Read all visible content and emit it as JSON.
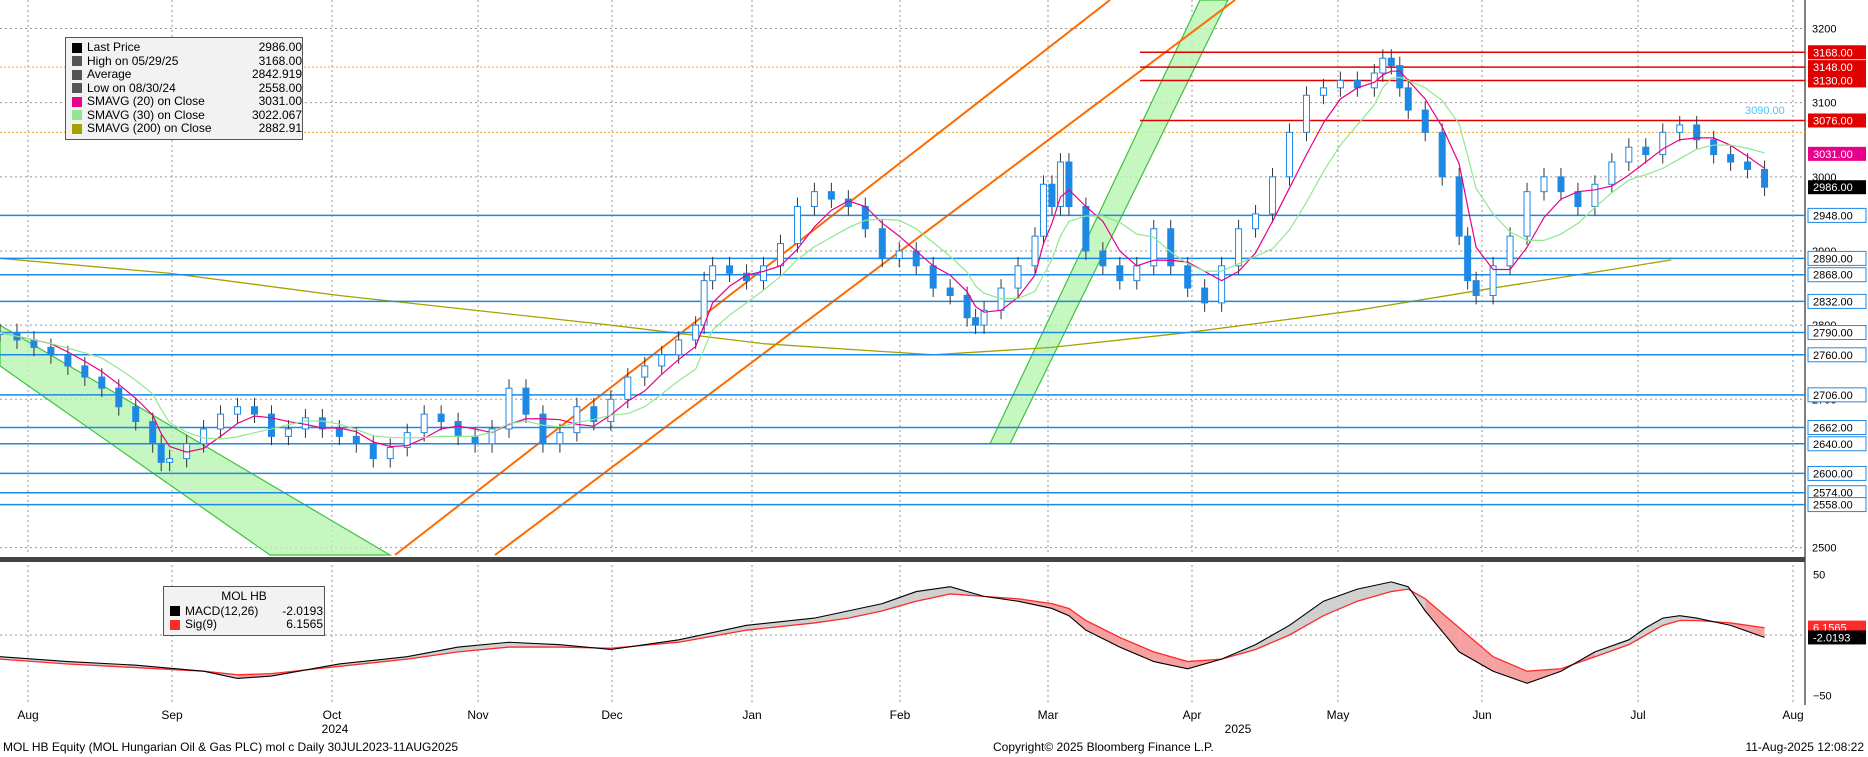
{
  "chart_data": [
    {
      "type": "candlestick",
      "ticker": "MOL HB Equity (MOL Hungarian Oil & Gas PLC) mol c",
      "period": "Daily 30JUL2023-11AUG2025",
      "ylim": [
        2490,
        3225
      ],
      "y_ticks": [
        2500,
        2600,
        2700,
        2800,
        2900,
        3000,
        3100,
        3200
      ],
      "x_months": [
        "Aug",
        "Sep",
        "Oct",
        "Nov",
        "Dec",
        "Jan",
        "Feb",
        "Mar",
        "Apr",
        "May",
        "Jun",
        "Jul",
        "Aug"
      ],
      "x_years": [
        "2024",
        "2025"
      ],
      "legend": [
        {
          "label": "Last Price",
          "value": "2986.00",
          "color": "#000000"
        },
        {
          "label": "High on 05/29/25",
          "value": "3168.00",
          "color": "#555555"
        },
        {
          "label": "Average",
          "value": "2842.919",
          "color": "#555555"
        },
        {
          "label": "Low on 08/30/24",
          "value": "2558.00",
          "color": "#555555"
        },
        {
          "label": "SMAVG (20)  on Close",
          "value": "3031.00",
          "color": "#e6008a"
        },
        {
          "label": "SMAVG (30)  on Close",
          "value": "3022.067",
          "color": "#8fe88f"
        },
        {
          "label": "SMAVG (200)  on Close",
          "value": "2882.91",
          "color": "#a3a300"
        }
      ],
      "horizontal_levels": [
        {
          "value": 3168,
          "label": "3168.00",
          "color": "#e00000"
        },
        {
          "value": 3148,
          "label": "3148.00",
          "color": "#e00000"
        },
        {
          "value": 3130,
          "label": "3130.00",
          "color": "#e00000"
        },
        {
          "value": 3076,
          "label": "3076.00",
          "color": "#e00000"
        },
        {
          "value": 2948,
          "label": "2948.00",
          "color": "#1e88e5"
        },
        {
          "value": 2890,
          "label": "2890.00",
          "color": "#1e88e5"
        },
        {
          "value": 2868,
          "label": "2868.00",
          "color": "#1e88e5"
        },
        {
          "value": 2832,
          "label": "2832.00",
          "color": "#1e88e5"
        },
        {
          "value": 2790,
          "label": "2790.00",
          "color": "#1e88e5"
        },
        {
          "value": 2760,
          "label": "2760.00",
          "color": "#1e88e5"
        },
        {
          "value": 2706,
          "label": "2706.00",
          "color": "#1e88e5"
        },
        {
          "value": 2662,
          "label": "2662.00",
          "color": "#1e88e5"
        },
        {
          "value": 2640,
          "label": "2640.00",
          "color": "#1e88e5"
        },
        {
          "value": 2600,
          "label": "2600.00",
          "color": "#1e88e5"
        },
        {
          "value": 2574,
          "label": "2574.00",
          "color": "#1e88e5"
        },
        {
          "value": 2558,
          "label": "2558.00",
          "color": "#1e88e5"
        }
      ],
      "right_labels": [
        {
          "value": 3031,
          "label": "3031.00",
          "bg": "#e6008a",
          "fg": "#ffffff"
        },
        {
          "value": 2986,
          "label": "2986.00",
          "bg": "#000000",
          "fg": "#ffffff"
        }
      ],
      "floating_label": {
        "value": 3090,
        "label": "3090.00",
        "color": "#4fc3f7"
      },
      "ma200_points": [
        [
          0.0,
          2890
        ],
        [
          0.1,
          2870
        ],
        [
          0.2,
          2840
        ],
        [
          0.3,
          2815
        ],
        [
          0.36,
          2800
        ],
        [
          0.45,
          2775
        ],
        [
          0.55,
          2760
        ],
        [
          0.62,
          2770
        ],
        [
          0.7,
          2790
        ],
        [
          0.8,
          2820
        ],
        [
          0.88,
          2850
        ],
        [
          0.95,
          2875
        ],
        [
          0.985,
          2888
        ]
      ],
      "candles": [
        [
          0.0,
          2790
        ],
        [
          0.01,
          2780
        ],
        [
          0.02,
          2770
        ],
        [
          0.03,
          2760
        ],
        [
          0.04,
          2745
        ],
        [
          0.05,
          2730
        ],
        [
          0.06,
          2715
        ],
        [
          0.07,
          2690
        ],
        [
          0.08,
          2670
        ],
        [
          0.09,
          2640
        ],
        [
          0.095,
          2615
        ],
        [
          0.1,
          2620
        ],
        [
          0.11,
          2640
        ],
        [
          0.12,
          2660
        ],
        [
          0.13,
          2680
        ],
        [
          0.14,
          2690
        ],
        [
          0.15,
          2680
        ],
        [
          0.16,
          2650
        ],
        [
          0.17,
          2660
        ],
        [
          0.18,
          2675
        ],
        [
          0.19,
          2660
        ],
        [
          0.2,
          2650
        ],
        [
          0.21,
          2640
        ],
        [
          0.22,
          2620
        ],
        [
          0.23,
          2635
        ],
        [
          0.24,
          2655
        ],
        [
          0.25,
          2680
        ],
        [
          0.26,
          2670
        ],
        [
          0.27,
          2650
        ],
        [
          0.28,
          2640
        ],
        [
          0.29,
          2660
        ],
        [
          0.3,
          2715
        ],
        [
          0.31,
          2680
        ],
        [
          0.32,
          2640
        ],
        [
          0.33,
          2655
        ],
        [
          0.34,
          2690
        ],
        [
          0.35,
          2670
        ],
        [
          0.36,
          2700
        ],
        [
          0.37,
          2730
        ],
        [
          0.38,
          2745
        ],
        [
          0.39,
          2760
        ],
        [
          0.4,
          2780
        ],
        [
          0.41,
          2800
        ],
        [
          0.415,
          2860
        ],
        [
          0.42,
          2880
        ],
        [
          0.43,
          2870
        ],
        [
          0.44,
          2860
        ],
        [
          0.45,
          2880
        ],
        [
          0.46,
          2910
        ],
        [
          0.47,
          2960
        ],
        [
          0.48,
          2980
        ],
        [
          0.49,
          2970
        ],
        [
          0.5,
          2960
        ],
        [
          0.51,
          2930
        ],
        [
          0.52,
          2890
        ],
        [
          0.53,
          2900
        ],
        [
          0.54,
          2880
        ],
        [
          0.55,
          2850
        ],
        [
          0.56,
          2840
        ],
        [
          0.57,
          2810
        ],
        [
          0.575,
          2800
        ],
        [
          0.58,
          2820
        ],
        [
          0.59,
          2850
        ],
        [
          0.6,
          2880
        ],
        [
          0.61,
          2920
        ],
        [
          0.615,
          2990
        ],
        [
          0.62,
          2960
        ],
        [
          0.625,
          3020
        ],
        [
          0.63,
          2960
        ],
        [
          0.64,
          2900
        ],
        [
          0.65,
          2880
        ],
        [
          0.66,
          2860
        ],
        [
          0.67,
          2880
        ],
        [
          0.68,
          2930
        ],
        [
          0.69,
          2880
        ],
        [
          0.7,
          2850
        ],
        [
          0.71,
          2830
        ],
        [
          0.72,
          2880
        ],
        [
          0.73,
          2930
        ],
        [
          0.74,
          2950
        ],
        [
          0.75,
          3000
        ],
        [
          0.76,
          3060
        ],
        [
          0.77,
          3110
        ],
        [
          0.78,
          3120
        ],
        [
          0.79,
          3130
        ],
        [
          0.8,
          3120
        ],
        [
          0.81,
          3140
        ],
        [
          0.815,
          3160
        ],
        [
          0.82,
          3150
        ],
        [
          0.825,
          3120
        ],
        [
          0.83,
          3090
        ],
        [
          0.84,
          3060
        ],
        [
          0.85,
          3000
        ],
        [
          0.86,
          2920
        ],
        [
          0.865,
          2860
        ],
        [
          0.87,
          2840
        ],
        [
          0.88,
          2880
        ],
        [
          0.89,
          2920
        ],
        [
          0.9,
          2980
        ],
        [
          0.91,
          3000
        ],
        [
          0.92,
          2980
        ],
        [
          0.93,
          2960
        ],
        [
          0.94,
          2990
        ],
        [
          0.95,
          3020
        ],
        [
          0.96,
          3040
        ],
        [
          0.97,
          3030
        ],
        [
          0.98,
          3060
        ],
        [
          0.99,
          3070
        ],
        [
          1.0,
          3050
        ],
        [
          1.01,
          3030
        ],
        [
          1.02,
          3020
        ],
        [
          1.03,
          3010
        ],
        [
          1.04,
          2986
        ]
      ]
    },
    {
      "type": "macd",
      "title": "MOL HB",
      "ylim": [
        -58,
        58
      ],
      "y_ticks": [
        50,
        -50
      ],
      "legend": [
        {
          "label": "MACD(12,26)",
          "value": "-2.0193",
          "color": "#000000"
        },
        {
          "label": "Sig(9)",
          "value": "6.1565",
          "color": "#ff2a2a"
        }
      ],
      "right_labels": [
        {
          "value": 6.1565,
          "label": "6.1565",
          "bg": "#ff2a2a",
          "fg": "#ffffff"
        },
        {
          "value": -2.0193,
          "label": "-2.0193",
          "bg": "#000000",
          "fg": "#ffffff"
        }
      ],
      "macd_points": [
        [
          0.0,
          -18
        ],
        [
          0.04,
          -22
        ],
        [
          0.08,
          -25
        ],
        [
          0.12,
          -30
        ],
        [
          0.14,
          -36
        ],
        [
          0.16,
          -34
        ],
        [
          0.2,
          -24
        ],
        [
          0.24,
          -18
        ],
        [
          0.27,
          -10
        ],
        [
          0.3,
          -6
        ],
        [
          0.33,
          -8
        ],
        [
          0.36,
          -12
        ],
        [
          0.4,
          -4
        ],
        [
          0.44,
          8
        ],
        [
          0.48,
          14
        ],
        [
          0.5,
          20
        ],
        [
          0.52,
          26
        ],
        [
          0.54,
          36
        ],
        [
          0.56,
          40
        ],
        [
          0.58,
          32
        ],
        [
          0.6,
          28
        ],
        [
          0.62,
          22
        ],
        [
          0.63,
          16
        ],
        [
          0.64,
          4
        ],
        [
          0.66,
          -10
        ],
        [
          0.68,
          -22
        ],
        [
          0.7,
          -28
        ],
        [
          0.72,
          -20
        ],
        [
          0.74,
          -8
        ],
        [
          0.76,
          8
        ],
        [
          0.78,
          28
        ],
        [
          0.8,
          38
        ],
        [
          0.82,
          44
        ],
        [
          0.83,
          40
        ],
        [
          0.84,
          20
        ],
        [
          0.86,
          -14
        ],
        [
          0.88,
          -30
        ],
        [
          0.9,
          -40
        ],
        [
          0.92,
          -30
        ],
        [
          0.94,
          -14
        ],
        [
          0.96,
          -4
        ],
        [
          0.97,
          6
        ],
        [
          0.98,
          14
        ],
        [
          0.99,
          16
        ],
        [
          1.0,
          14
        ],
        [
          1.02,
          8
        ],
        [
          1.04,
          -2
        ]
      ],
      "signal_points": [
        [
          0.0,
          -20
        ],
        [
          0.04,
          -24
        ],
        [
          0.08,
          -27
        ],
        [
          0.12,
          -30
        ],
        [
          0.14,
          -33
        ],
        [
          0.16,
          -32
        ],
        [
          0.2,
          -26
        ],
        [
          0.24,
          -20
        ],
        [
          0.27,
          -14
        ],
        [
          0.3,
          -10
        ],
        [
          0.33,
          -10
        ],
        [
          0.36,
          -11
        ],
        [
          0.4,
          -6
        ],
        [
          0.44,
          4
        ],
        [
          0.48,
          10
        ],
        [
          0.5,
          14
        ],
        [
          0.52,
          20
        ],
        [
          0.54,
          28
        ],
        [
          0.56,
          34
        ],
        [
          0.58,
          32
        ],
        [
          0.6,
          30
        ],
        [
          0.62,
          26
        ],
        [
          0.63,
          22
        ],
        [
          0.64,
          12
        ],
        [
          0.66,
          -2
        ],
        [
          0.68,
          -14
        ],
        [
          0.7,
          -22
        ],
        [
          0.72,
          -20
        ],
        [
          0.74,
          -12
        ],
        [
          0.76,
          0
        ],
        [
          0.78,
          16
        ],
        [
          0.8,
          28
        ],
        [
          0.82,
          36
        ],
        [
          0.83,
          38
        ],
        [
          0.84,
          30
        ],
        [
          0.86,
          6
        ],
        [
          0.88,
          -18
        ],
        [
          0.9,
          -30
        ],
        [
          0.92,
          -28
        ],
        [
          0.94,
          -18
        ],
        [
          0.96,
          -8
        ],
        [
          0.97,
          0
        ],
        [
          0.98,
          8
        ],
        [
          0.99,
          12
        ],
        [
          1.0,
          12
        ],
        [
          1.02,
          10
        ],
        [
          1.04,
          6
        ]
      ]
    }
  ],
  "footer": {
    "left": "MOL HB Equity (MOL Hungarian Oil & Gas PLC) mol c  Daily 30JUL2023-11AUG2025",
    "center": "Copyright© 2025 Bloomberg Finance L.P.",
    "right": "11-Aug-2025 12:08:22"
  }
}
